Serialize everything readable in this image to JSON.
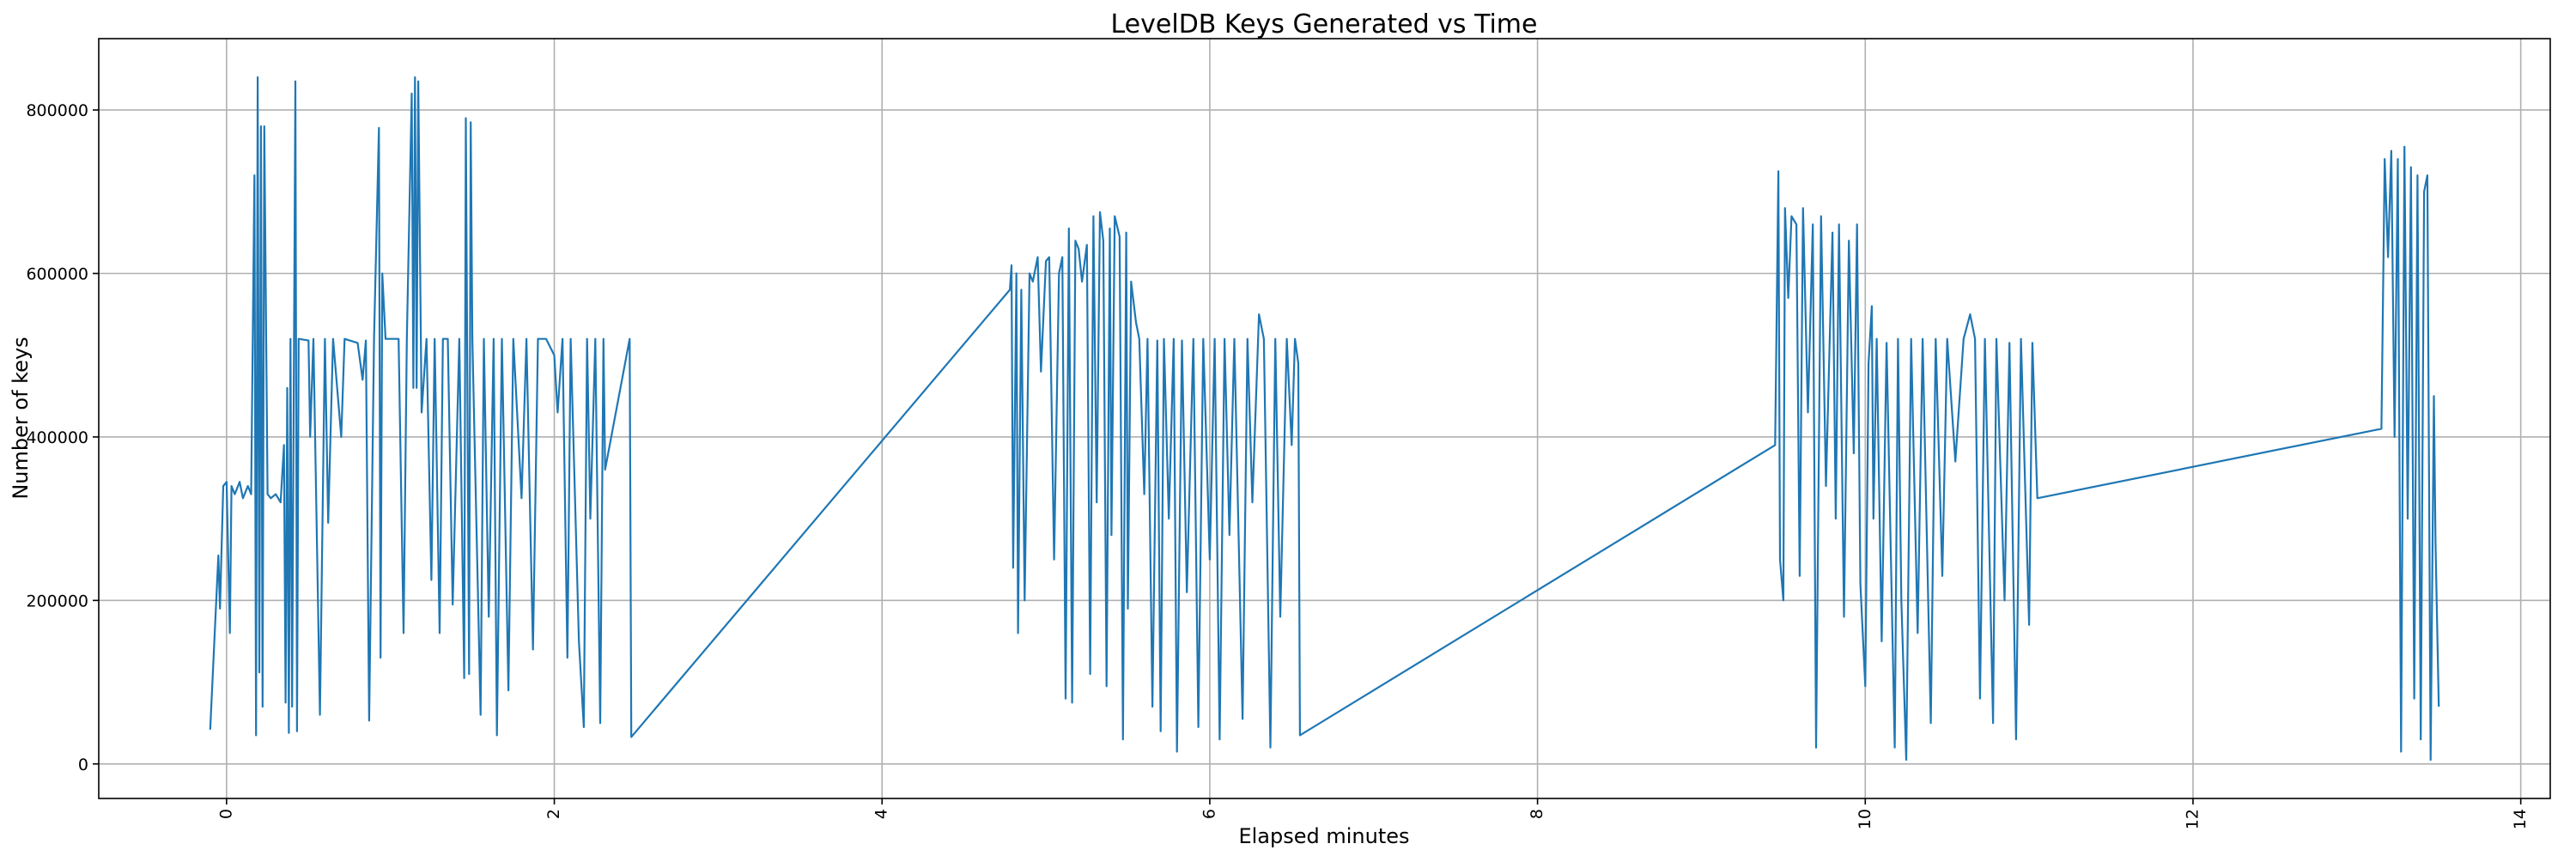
{
  "chart_data": {
    "type": "line",
    "title": "LevelDB Keys Generated vs Time",
    "xlabel": "Elapsed minutes",
    "ylabel": "Number of keys",
    "xlim": [
      -0.78,
      14.18
    ],
    "ylim": [
      -42250,
      887250
    ],
    "xticks": [
      0,
      2,
      4,
      6,
      8,
      10,
      12,
      14
    ],
    "xtick_labels": [
      "0",
      "2",
      "4",
      "6",
      "8",
      "10",
      "12",
      "14"
    ],
    "yticks": [
      0,
      200000,
      400000,
      600000,
      800000
    ],
    "ytick_labels": [
      "0",
      "200000",
      "400000",
      "600000",
      "800000"
    ],
    "grid": true,
    "line_color": "#1f77b4",
    "series": [
      {
        "name": "keys",
        "x": [
          -0.1,
          -0.05,
          -0.04,
          -0.02,
          0,
          0.02,
          0.03,
          0.05,
          0.08,
          0.1,
          0.13,
          0.15,
          0.17,
          0.18,
          0.19,
          0.2,
          0.21,
          0.22,
          0.23,
          0.25,
          0.27,
          0.3,
          0.33,
          0.35,
          0.36,
          0.37,
          0.38,
          0.39,
          0.4,
          0.42,
          0.43,
          0.44,
          0.5,
          0.51,
          0.53,
          0.57,
          0.6,
          0.62,
          0.65,
          0.7,
          0.72,
          0.8,
          0.83,
          0.85,
          0.87,
          0.9,
          0.93,
          0.94,
          0.95,
          0.97,
          1.05,
          1.08,
          1.1,
          1.13,
          1.14,
          1.15,
          1.16,
          1.17,
          1.19,
          1.22,
          1.25,
          1.27,
          1.3,
          1.32,
          1.35,
          1.38,
          1.42,
          1.45,
          1.46,
          1.48,
          1.49,
          1.5,
          1.55,
          1.57,
          1.6,
          1.63,
          1.65,
          1.68,
          1.72,
          1.75,
          1.8,
          1.83,
          1.87,
          1.9,
          1.95,
          2,
          2.02,
          2.05,
          2.08,
          2.1,
          2.15,
          2.18,
          2.2,
          2.22,
          2.25,
          2.28,
          2.3,
          2.31,
          2.46,
          2.47,
          4.78,
          4.79,
          4.8,
          4.82,
          4.83,
          4.85,
          4.87,
          4.9,
          4.92,
          4.95,
          4.97,
          5,
          5.02,
          5.05,
          5.08,
          5.1,
          5.12,
          5.14,
          5.16,
          5.18,
          5.2,
          5.22,
          5.25,
          5.27,
          5.29,
          5.31,
          5.33,
          5.35,
          5.37,
          5.39,
          5.4,
          5.42,
          5.45,
          5.47,
          5.49,
          5.5,
          5.52,
          5.55,
          5.57,
          5.6,
          5.62,
          5.65,
          5.68,
          5.7,
          5.72,
          5.75,
          5.78,
          5.8,
          5.83,
          5.86,
          5.9,
          5.93,
          5.96,
          6,
          6.03,
          6.06,
          6.09,
          6.12,
          6.15,
          6.2,
          6.23,
          6.26,
          6.3,
          6.33,
          6.37,
          6.4,
          6.43,
          6.47,
          6.5,
          6.52,
          6.54,
          6.55,
          9.45,
          9.47,
          9.48,
          9.5,
          9.51,
          9.53,
          9.55,
          9.58,
          9.6,
          9.62,
          9.65,
          9.68,
          9.7,
          9.73,
          9.76,
          9.8,
          9.82,
          9.84,
          9.87,
          9.9,
          9.93,
          9.95,
          9.97,
          10.0,
          10.02,
          10.04,
          10.05,
          10.07,
          10.1,
          10.13,
          10.18,
          10.2,
          10.22,
          10.25,
          10.28,
          10.32,
          10.35,
          10.4,
          10.43,
          10.47,
          10.5,
          10.55,
          10.6,
          10.64,
          10.67,
          10.7,
          10.73,
          10.78,
          10.8,
          10.85,
          10.88,
          10.92,
          10.95,
          11.0,
          11.02,
          11.05,
          13.15,
          13.17,
          13.19,
          13.21,
          13.23,
          13.25,
          13.27,
          13.29,
          13.31,
          13.33,
          13.35,
          13.37,
          13.39,
          13.41,
          13.43,
          13.45,
          13.47,
          13.48,
          13.5
        ],
        "y": [
          42000,
          255000,
          190000,
          340000,
          345000,
          160000,
          340000,
          330000,
          345000,
          325000,
          340000,
          330000,
          720000,
          35000,
          840000,
          112000,
          780000,
          70000,
          780000,
          330000,
          325000,
          330000,
          320000,
          390000,
          75000,
          460000,
          38000,
          520000,
          70000,
          835000,
          40000,
          520000,
          518000,
          400000,
          520000,
          60000,
          520000,
          295000,
          520000,
          400000,
          520000,
          515000,
          470000,
          518000,
          53000,
          520000,
          778000,
          130000,
          600000,
          520000,
          520000,
          160000,
          520000,
          820000,
          460000,
          840000,
          460000,
          835000,
          430000,
          520000,
          225000,
          520000,
          160000,
          520000,
          520000,
          195000,
          520000,
          105000,
          790000,
          110000,
          785000,
          520000,
          60000,
          520000,
          180000,
          520000,
          35000,
          520000,
          90000,
          520000,
          325000,
          520000,
          140000,
          520000,
          520000,
          500000,
          430000,
          520000,
          130000,
          520000,
          150000,
          45000,
          520000,
          300000,
          520000,
          50000,
          520000,
          360000,
          520000,
          33000,
          580000,
          610000,
          240000,
          600000,
          160000,
          580000,
          200000,
          600000,
          590000,
          620000,
          480000,
          615000,
          620000,
          250000,
          600000,
          620000,
          80000,
          655000,
          75000,
          640000,
          630000,
          590000,
          635000,
          110000,
          670000,
          320000,
          675000,
          640000,
          95000,
          655000,
          280000,
          670000,
          645000,
          30000,
          650000,
          190000,
          590000,
          540000,
          520000,
          330000,
          520000,
          70000,
          518000,
          40000,
          520000,
          300000,
          520000,
          15000,
          518000,
          210000,
          520000,
          45000,
          520000,
          250000,
          520000,
          30000,
          520000,
          280000,
          520000,
          55000,
          520000,
          320000,
          550000,
          520000,
          20000,
          520000,
          180000,
          520000,
          390000,
          520000,
          490000,
          35000,
          390000,
          725000,
          250000,
          200000,
          680000,
          570000,
          670000,
          660000,
          230000,
          680000,
          430000,
          660000,
          20000,
          670000,
          340000,
          650000,
          300000,
          660000,
          180000,
          640000,
          380000,
          660000,
          220000,
          95000,
          490000,
          560000,
          300000,
          520000,
          150000,
          515000,
          20000,
          520000,
          200000,
          5000,
          520000,
          160000,
          520000,
          50000,
          520000,
          230000,
          520000,
          370000,
          520000,
          550000,
          520000,
          80000,
          520000,
          50000,
          520000,
          200000,
          515000,
          30000,
          520000,
          170000,
          515000,
          325000,
          410000,
          740000,
          620000,
          750000,
          400000,
          740000,
          15000,
          755000,
          300000,
          730000,
          80000,
          720000,
          30000,
          700000,
          720000,
          5000,
          450000,
          270000,
          70000
        ]
      }
    ]
  }
}
